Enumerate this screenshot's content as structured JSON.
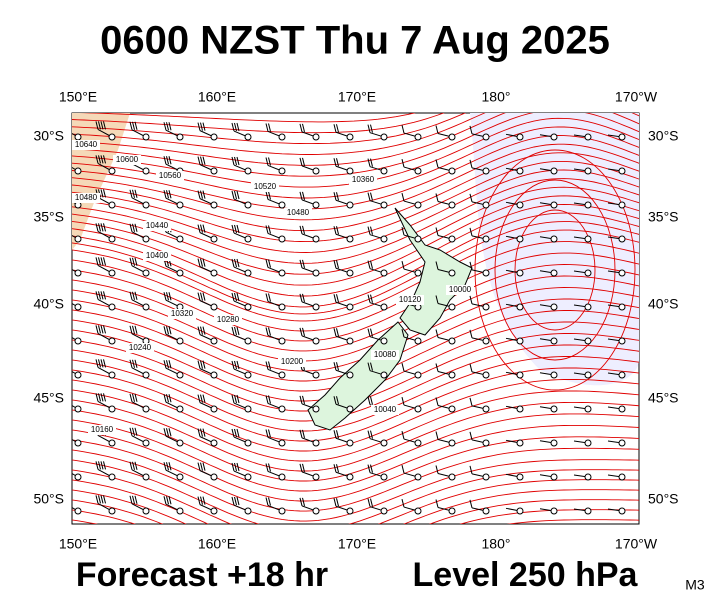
{
  "title": "0600 NZST Thu 7 Aug 2025",
  "footer_left": "Forecast +18 hr",
  "footer_right": "Level 250 hPa",
  "code": "M3",
  "lon_labels": [
    "150°E",
    "160°E",
    "170°E",
    "180°",
    "170°W"
  ],
  "lat_labels": [
    "30°S",
    "35°S",
    "40°S",
    "45°S",
    "50°S"
  ],
  "contour_labels": [
    "10640",
    "10600",
    "10560",
    "10520",
    "10480",
    "10480",
    "10440",
    "10400",
    "10360",
    "10320",
    "10280",
    "10240",
    "10200",
    "10160",
    "10120",
    "10080",
    "10040",
    "10000"
  ]
}
